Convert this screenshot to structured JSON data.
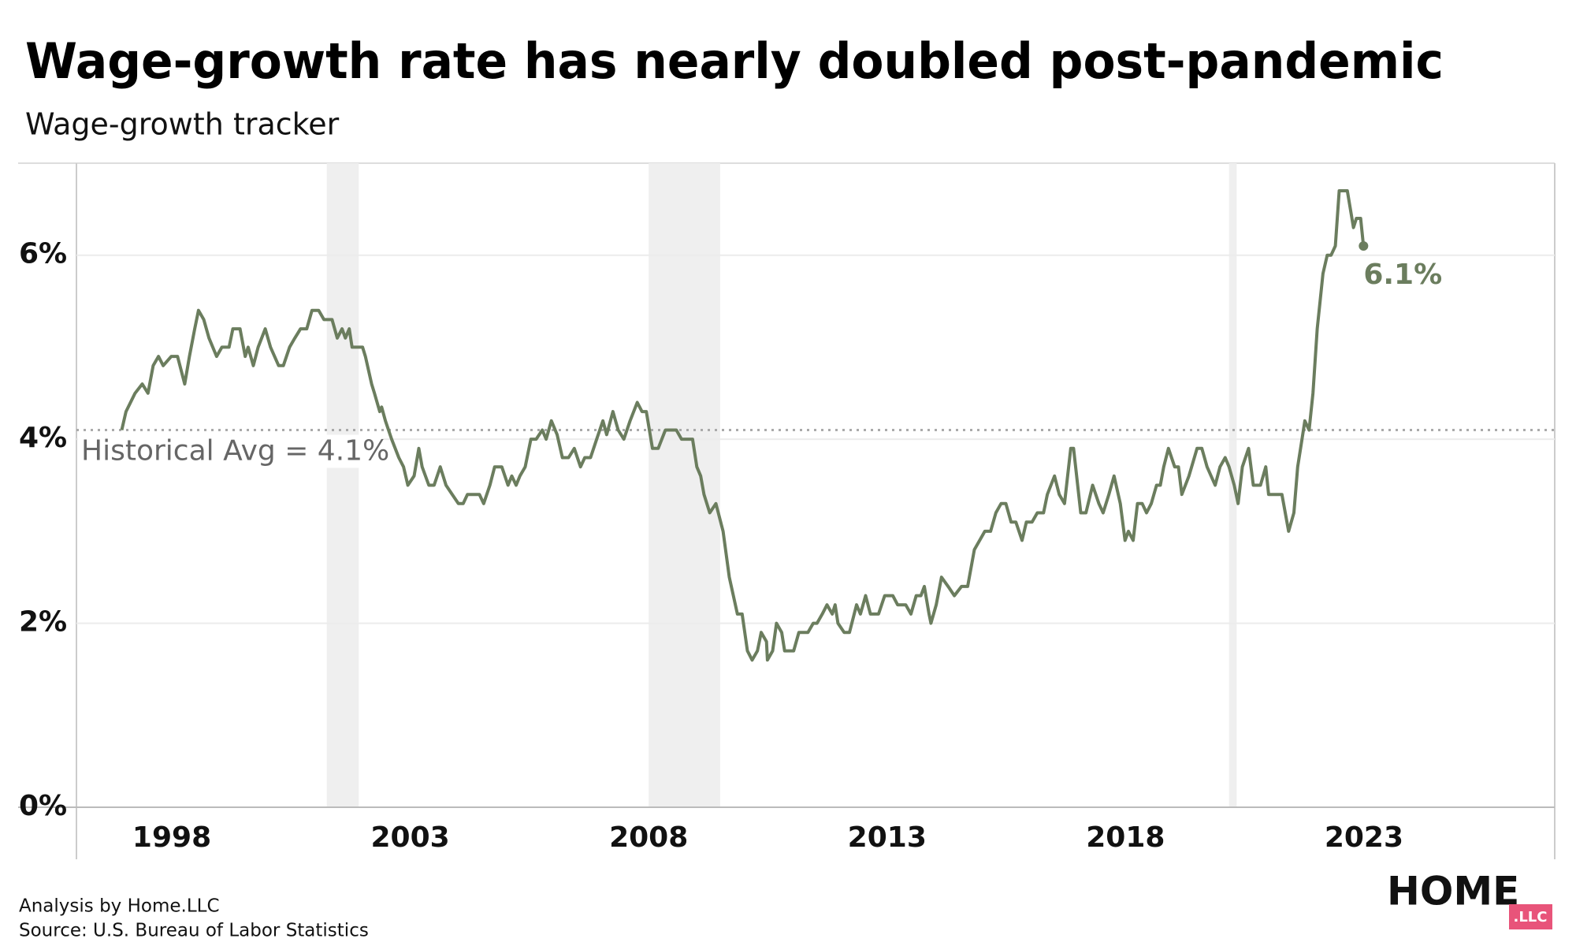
{
  "chart_data": {
    "type": "line",
    "title": "Wage-growth rate has nearly doubled post-pandemic",
    "subtitle": "Wage-growth tracker",
    "footer": [
      "Analysis by Home.LLC",
      "Source: U.S. Bureau of Labor Statistics"
    ],
    "logo": {
      "text": "HOME",
      "badge": ".LLC"
    },
    "xlim": [
      1996,
      2027
    ],
    "xticks": [
      1998,
      2003,
      2008,
      2013,
      2018,
      2023
    ],
    "ylim": [
      0,
      7
    ],
    "yticks": [
      {
        "value": 0,
        "label": "0%"
      },
      {
        "value": 2,
        "label": "2%"
      },
      {
        "value": 4,
        "label": "4%"
      },
      {
        "value": 6,
        "label": "6%"
      }
    ],
    "grid": true,
    "average": 4.1,
    "average_label": "Historical Avg = 4.1%",
    "recessions": [
      {
        "start": 2001.25,
        "end": 2001.92
      },
      {
        "start": 2008.0,
        "end": 2009.5
      },
      {
        "start": 2020.17,
        "end": 2020.33
      }
    ],
    "series": [
      {
        "name": "Wage growth",
        "color": "#6b7d5e",
        "x": [
          1996.95,
          1997.04,
          1997.23,
          1997.38,
          1997.5,
          1997.61,
          1997.72,
          1997.82,
          1997.99,
          1998.12,
          1998.27,
          1998.37,
          1998.48,
          1998.56,
          1998.67,
          1998.78,
          1998.94,
          1999.05,
          1999.2,
          1999.28,
          1999.43,
          1999.54,
          1999.6,
          1999.71,
          1999.81,
          1999.96,
          2000.07,
          2000.24,
          2000.34,
          2000.47,
          2000.58,
          2000.7,
          2000.83,
          2000.94,
          2001.08,
          2001.19,
          2001.36,
          2001.47,
          2001.57,
          2001.64,
          2001.72,
          2001.78,
          2002.0,
          2002.06,
          2002.19,
          2002.25,
          2002.36,
          2002.4,
          2002.48,
          2002.61,
          2002.76,
          2002.86,
          2002.95,
          2003.08,
          2003.18,
          2003.25,
          2003.39,
          2003.5,
          2003.63,
          2003.75,
          2003.88,
          2004.01,
          2004.11,
          2004.2,
          2004.31,
          2004.45,
          2004.54,
          2004.67,
          2004.77,
          2004.92,
          2005.05,
          2005.13,
          2005.22,
          2005.3,
          2005.41,
          2005.53,
          2005.64,
          2005.77,
          2005.85,
          2005.96,
          2006.08,
          2006.19,
          2006.32,
          2006.44,
          2006.57,
          2006.66,
          2006.78,
          2006.91,
          2007.04,
          2007.12,
          2007.25,
          2007.36,
          2007.48,
          2007.61,
          2007.76,
          2007.86,
          2007.95,
          2008.08,
          2008.2,
          2008.35,
          2008.58,
          2008.69,
          2008.92,
          2009.01,
          2009.09,
          2009.16,
          2009.28,
          2009.41,
          2009.56,
          2009.69,
          2009.86,
          2009.96,
          2010.07,
          2010.17,
          2010.28,
          2010.36,
          2010.47,
          2010.49,
          2010.6,
          2010.68,
          2010.79,
          2010.85,
          2011.04,
          2011.15,
          2011.34,
          2011.45,
          2011.53,
          2011.64,
          2011.74,
          2011.85,
          2011.91,
          2011.97,
          2012.1,
          2012.21,
          2012.36,
          2012.44,
          2012.55,
          2012.65,
          2012.82,
          2012.95,
          2013.12,
          2013.22,
          2013.39,
          2013.5,
          2013.61,
          2013.71,
          2013.78,
          2013.88,
          2013.92,
          2014.03,
          2014.14,
          2014.28,
          2014.41,
          2014.56,
          2014.69,
          2014.83,
          2014.94,
          2015.05,
          2015.17,
          2015.28,
          2015.39,
          2015.49,
          2015.6,
          2015.7,
          2015.83,
          2015.92,
          2016.04,
          2016.15,
          2016.28,
          2016.36,
          2016.51,
          2016.61,
          2016.72,
          2016.85,
          2016.91,
          2017.06,
          2017.17,
          2017.31,
          2017.44,
          2017.53,
          2017.65,
          2017.76,
          2017.89,
          2017.99,
          2018.06,
          2018.16,
          2018.25,
          2018.35,
          2018.44,
          2018.54,
          2018.65,
          2018.73,
          2018.8,
          2018.9,
          2019.03,
          2019.11,
          2019.18,
          2019.33,
          2019.5,
          2019.6,
          2019.71,
          2019.88,
          2019.98,
          2020.09,
          2020.17,
          2020.28,
          2020.36,
          2020.45,
          2020.58,
          2020.68,
          2020.83,
          2020.94,
          2021.0,
          2021.13,
          2021.28,
          2021.42,
          2021.53,
          2021.61,
          2021.7,
          2021.76,
          2021.85,
          2021.93,
          2022.02,
          2022.14,
          2022.23,
          2022.31,
          2022.4,
          2022.48,
          2022.65,
          2022.78,
          2022.84,
          2022.93,
          2022.99
        ],
        "values": [
          4.1,
          4.3,
          4.5,
          4.6,
          4.5,
          4.8,
          4.9,
          4.8,
          4.9,
          4.9,
          4.6,
          4.9,
          5.2,
          5.4,
          5.3,
          5.1,
          4.9,
          5.0,
          5.0,
          5.2,
          5.2,
          4.9,
          5.0,
          4.8,
          5.0,
          5.2,
          5.0,
          4.8,
          4.8,
          5.0,
          5.1,
          5.2,
          5.2,
          5.4,
          5.4,
          5.3,
          5.3,
          5.1,
          5.2,
          5.1,
          5.2,
          5.0,
          5.0,
          4.9,
          4.6,
          4.5,
          4.3,
          4.35,
          4.2,
          4.0,
          3.8,
          3.7,
          3.5,
          3.6,
          3.9,
          3.7,
          3.5,
          3.5,
          3.7,
          3.5,
          3.4,
          3.3,
          3.3,
          3.4,
          3.4,
          3.4,
          3.3,
          3.5,
          3.7,
          3.7,
          3.5,
          3.6,
          3.5,
          3.6,
          3.7,
          4.0,
          4.0,
          4.1,
          4.0,
          4.2,
          4.05,
          3.8,
          3.8,
          3.9,
          3.7,
          3.8,
          3.8,
          4.0,
          4.2,
          4.05,
          4.3,
          4.1,
          4.0,
          4.2,
          4.4,
          4.3,
          4.3,
          3.9,
          3.9,
          4.1,
          4.1,
          4.0,
          4.0,
          3.7,
          3.6,
          3.4,
          3.2,
          3.3,
          3.0,
          2.5,
          2.1,
          2.1,
          1.7,
          1.6,
          1.7,
          1.9,
          1.8,
          1.6,
          1.7,
          2.0,
          1.9,
          1.7,
          1.7,
          1.9,
          1.9,
          2.0,
          2.0,
          2.1,
          2.2,
          2.1,
          2.2,
          2.0,
          1.9,
          1.9,
          2.2,
          2.1,
          2.3,
          2.1,
          2.1,
          2.3,
          2.3,
          2.2,
          2.2,
          2.1,
          2.3,
          2.3,
          2.4,
          2.1,
          2.0,
          2.2,
          2.5,
          2.4,
          2.3,
          2.4,
          2.4,
          2.8,
          2.9,
          3.0,
          3.0,
          3.2,
          3.3,
          3.3,
          3.1,
          3.1,
          2.9,
          3.1,
          3.1,
          3.2,
          3.2,
          3.4,
          3.6,
          3.4,
          3.3,
          3.9,
          3.9,
          3.2,
          3.2,
          3.5,
          3.3,
          3.2,
          3.4,
          3.6,
          3.3,
          2.9,
          3.0,
          2.9,
          3.3,
          3.3,
          3.2,
          3.3,
          3.5,
          3.5,
          3.7,
          3.9,
          3.7,
          3.7,
          3.4,
          3.6,
          3.9,
          3.9,
          3.7,
          3.5,
          3.7,
          3.8,
          3.7,
          3.5,
          3.3,
          3.7,
          3.9,
          3.5,
          3.5,
          3.7,
          3.4,
          3.4,
          3.4,
          3.0,
          3.2,
          3.7,
          4.0,
          4.2,
          4.1,
          4.5,
          5.2,
          5.8,
          6.0,
          6.0,
          6.1,
          6.7,
          6.7,
          6.3,
          6.4,
          6.4,
          6.1
        ],
        "end_label": {
          "x": 2022.99,
          "y": 6.1,
          "label": "6.1%"
        }
      }
    ]
  }
}
